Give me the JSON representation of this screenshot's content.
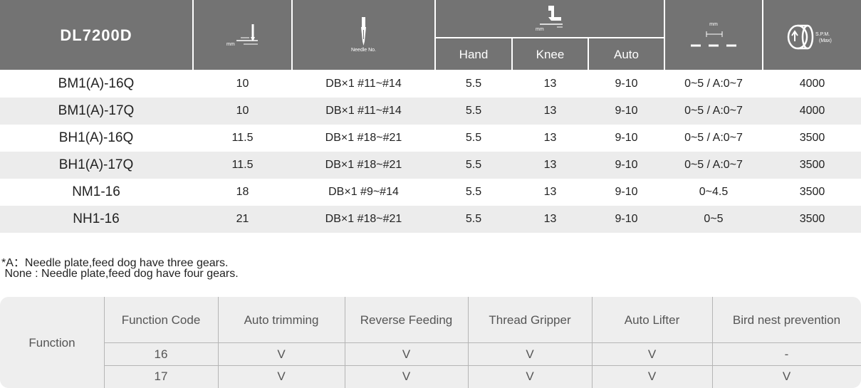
{
  "spec": {
    "model_header": "DL7200D",
    "units": {
      "mm": "mm",
      "needle": "Needle No.",
      "spm": "S.P.M.",
      "spm_max": "(Max)"
    },
    "presser_sub": [
      "Hand",
      "Knee",
      "Auto"
    ],
    "icons": [
      "stitch-length-icon",
      "needle-icon",
      "presser-foot-icon",
      "feed-dog-height-icon",
      "spm-icon"
    ],
    "rows": [
      {
        "model": "BM1(A)-16Q",
        "stitch": "10",
        "needle": "DB×1  #11~#14",
        "hand": "5.5",
        "knee": "13",
        "auto": "9-10",
        "feed": "0~5 / A:0~7",
        "spm": "4000"
      },
      {
        "model": "BM1(A)-17Q",
        "stitch": "10",
        "needle": "DB×1  #11~#14",
        "hand": "5.5",
        "knee": "13",
        "auto": "9-10",
        "feed": "0~5 / A:0~7",
        "spm": "4000"
      },
      {
        "model": "BH1(A)-16Q",
        "stitch": "11.5",
        "needle": "DB×1  #18~#21",
        "hand": "5.5",
        "knee": "13",
        "auto": "9-10",
        "feed": "0~5 / A:0~7",
        "spm": "3500"
      },
      {
        "model": "BH1(A)-17Q",
        "stitch": "11.5",
        "needle": "DB×1  #18~#21",
        "hand": "5.5",
        "knee": "13",
        "auto": "9-10",
        "feed": "0~5 / A:0~7",
        "spm": "3500"
      },
      {
        "model": "NM1-16",
        "stitch": "18",
        "needle": "DB×1  #9~#14",
        "hand": "5.5",
        "knee": "13",
        "auto": "9-10",
        "feed": "0~4.5",
        "spm": "3500"
      },
      {
        "model": "NH1-16",
        "stitch": "21",
        "needle": "DB×1  #18~#21",
        "hand": "5.5",
        "knee": "13",
        "auto": "9-10",
        "feed": "0~5",
        "spm": "3500"
      }
    ]
  },
  "notes": [
    "*A：Needle plate,feed dog have three gears.",
    " None : Needle plate,feed dog have four gears."
  ],
  "functions": {
    "label": "Function",
    "headers": [
      "Function Code",
      "Auto trimming",
      "Reverse Feeding",
      "Thread Gripper",
      "Auto Lifter",
      "Bird nest prevention"
    ],
    "rows": [
      [
        "16",
        "V",
        "V",
        "V",
        "V",
        "-"
      ],
      [
        "17",
        "V",
        "V",
        "V",
        "V",
        "V"
      ]
    ]
  }
}
